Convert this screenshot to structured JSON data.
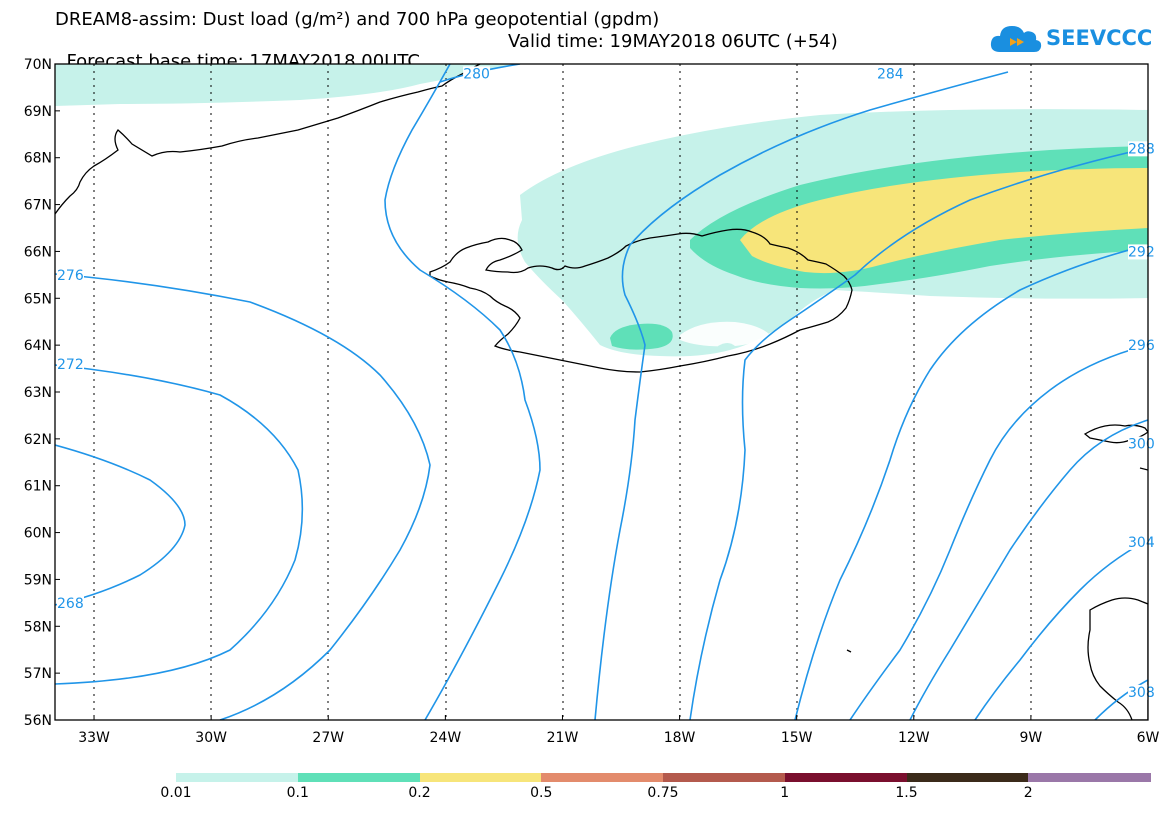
{
  "title": {
    "line1": "DREAM8-assim: Dust load (g/m²) and 700 hPa geopotential (gpdm)",
    "line2_base": "Forecast base time: 17MAY2018 00UTC",
    "line2_valid": "Valid time: 19MAY2018 06UTC (+54)"
  },
  "logo": {
    "text": "SEEVCCC",
    "icon": "cloud-icon",
    "color": "#1a8fe0"
  },
  "map": {
    "lat_range": [
      56,
      70
    ],
    "lon_range": [
      -34,
      -6
    ],
    "lat_ticks": [
      "70N",
      "69N",
      "68N",
      "67N",
      "66N",
      "65N",
      "64N",
      "63N",
      "62N",
      "61N",
      "60N",
      "59N",
      "58N",
      "57N",
      "56N"
    ],
    "lon_ticks": [
      {
        "lon": -33,
        "label": "33W"
      },
      {
        "lon": -30,
        "label": "30W"
      },
      {
        "lon": -27,
        "label": "27W"
      },
      {
        "lon": -24,
        "label": "24W"
      },
      {
        "lon": -21,
        "label": "21W"
      },
      {
        "lon": -18,
        "label": "18W"
      },
      {
        "lon": -15,
        "label": "15W"
      },
      {
        "lon": -12,
        "label": "12W"
      },
      {
        "lon": -9,
        "label": "9W"
      },
      {
        "lon": -6,
        "label": "6W"
      }
    ],
    "grid_lines": "dotted",
    "contour_color": "#2095e8",
    "contour_labels": [
      {
        "text": "280",
        "lon": -23.2,
        "lat": 69.8
      },
      {
        "text": "284",
        "lon": -12.6,
        "lat": 69.8
      },
      {
        "text": "288",
        "lon": -6.0,
        "lat": 68.2
      },
      {
        "text": "292",
        "lon": -6.0,
        "lat": 66.0
      },
      {
        "text": "296",
        "lon": -6.0,
        "lat": 64.0
      },
      {
        "text": "300",
        "lon": -6.0,
        "lat": 61.9
      },
      {
        "text": "304",
        "lon": -6.1,
        "lat": 59.8
      },
      {
        "text": "308",
        "lon": -6.4,
        "lat": 56.6
      },
      {
        "text": "276",
        "lon": -33.8,
        "lat": 65.5
      },
      {
        "text": "272",
        "lon": -33.8,
        "lat": 63.6
      },
      {
        "text": "268",
        "lon": -33.8,
        "lat": 58.5
      }
    ]
  },
  "colorbar": {
    "segments": [
      {
        "color": "#c6f2ea"
      },
      {
        "color": "#5fe0b8"
      },
      {
        "color": "#f7e57a"
      },
      {
        "color": "#e38b6c"
      },
      {
        "color": "#b45a4d"
      },
      {
        "color": "#7a0f2e"
      },
      {
        "color": "#3b2a1a"
      },
      {
        "color": "#9a77a8"
      }
    ],
    "labels": [
      "0.01",
      "0.1",
      "0.2",
      "0.5",
      "0.75",
      "1",
      "1.5",
      "2"
    ]
  }
}
